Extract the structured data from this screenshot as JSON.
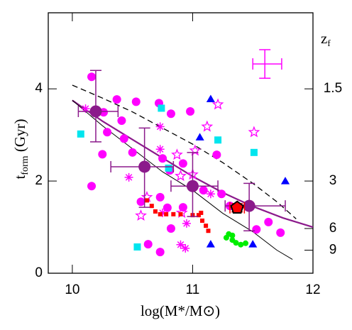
{
  "chart_data": {
    "type": "scatter",
    "xlabel": "log(M*/M⊙)",
    "ylabel": {
      "text": "t",
      "sub": "form",
      "rest": " (Gyr)"
    },
    "y2label": {
      "text": "z",
      "sub": "f"
    },
    "xlim": [
      9.8,
      12
    ],
    "ylim": [
      0,
      5.65
    ],
    "xticks": [
      10,
      11,
      12
    ],
    "yticks": [
      0,
      2,
      4
    ],
    "y2ticks": [
      1.5,
      3,
      6,
      9
    ],
    "y2tick_tform": [
      4.0,
      2.0,
      0.97,
      0.5
    ],
    "lines": [
      {
        "style": "dashed",
        "color": "#000000",
        "width": 1.3,
        "x": [
          10.0,
          10.25,
          10.5,
          10.75,
          11.0,
          11.25,
          11.5,
          11.7,
          11.86
        ],
        "values": [
          4.08,
          3.8,
          3.5,
          3.15,
          2.8,
          2.4,
          1.95,
          1.55,
          1.18
        ]
      },
      {
        "style": "solid",
        "color": "#8b1a8b",
        "width": 2.2,
        "x": [
          10.0,
          10.25,
          10.5,
          10.75,
          11.0,
          11.25,
          11.5,
          11.75,
          12.0
        ],
        "values": [
          3.75,
          3.3,
          2.9,
          2.5,
          2.1,
          1.75,
          1.45,
          1.2,
          1.0
        ]
      },
      {
        "style": "solid",
        "color": "#000000",
        "width": 1,
        "x": [
          10.0,
          10.25,
          10.5,
          10.75,
          11.0,
          11.25,
          11.5,
          11.7,
          11.83
        ],
        "values": [
          3.75,
          3.2,
          2.7,
          2.2,
          1.8,
          1.3,
          0.9,
          0.5,
          0.3
        ]
      }
    ],
    "series": [
      {
        "marker": "circle",
        "color": "#ff00ff",
        "x": [
          10.16,
          10.16,
          10.25,
          10.29,
          10.26,
          10.37,
          10.41,
          10.5,
          10.43,
          10.53,
          10.72,
          10.82,
          10.98,
          10.75,
          10.73,
          10.79,
          10.82,
          10.63,
          10.73,
          10.92,
          11.09,
          11.24,
          11.2,
          11.31,
          11.53,
          11.63,
          11.73,
          10.57,
          10.81,
          10.92
        ],
        "values": [
          4.26,
          1.89,
          2.58,
          3.06,
          3.49,
          3.77,
          3.31,
          2.62,
          2.92,
          3.72,
          3.69,
          3.46,
          3.51,
          2.49,
          1.65,
          1.42,
          0.97,
          0.63,
          0.46,
          1.43,
          1.8,
          1.72,
          2.57,
          1.46,
          0.95,
          1.11,
          0.88,
          1.55,
          2.23,
          2.38
        ]
      },
      {
        "marker": "star",
        "color": "#ff00ff",
        "x": [
          11.21,
          11.12,
          11.51,
          11.02,
          10.87,
          11.0,
          10.9,
          10.62,
          10.57,
          10.91
        ],
        "values": [
          3.66,
          3.18,
          3.06,
          2.66,
          2.57,
          2.14,
          2.11,
          1.65,
          1.25,
          1.31
        ]
      },
      {
        "marker": "asterisk",
        "color": "#ff00ff",
        "x": [
          10.11,
          10.73,
          10.47,
          11.15,
          10.75,
          10.95,
          10.9,
          10.94,
          10.73
        ],
        "values": [
          3.57,
          3.18,
          2.08,
          1.72,
          1.31,
          1.08,
          0.62,
          0.54,
          2.69
        ]
      },
      {
        "marker": "square",
        "color": "#00e5ee",
        "x": [
          10.07,
          10.74,
          10.8,
          11.21,
          11.51,
          10.54
        ],
        "values": [
          3.02,
          3.58,
          2.28,
          2.89,
          2.62,
          0.57
        ]
      },
      {
        "marker": "triangle",
        "color": "#0000ff",
        "x": [
          11.15,
          11.06,
          11.77,
          11.15,
          11.5
        ],
        "values": [
          3.78,
          2.95,
          2.0,
          0.63,
          0.63
        ]
      },
      {
        "marker": "smallsquare",
        "color": "#ff0000",
        "x": [
          10.62,
          10.66,
          10.69,
          10.73,
          10.78,
          10.84,
          10.9,
          11.0,
          11.05,
          11.08,
          11.11,
          11.13,
          11.07
        ],
        "values": [
          1.58,
          1.46,
          1.34,
          1.28,
          1.28,
          1.28,
          1.28,
          1.26,
          1.26,
          1.14,
          1.03,
          0.92,
          1.31
        ]
      },
      {
        "marker": "smallcircle",
        "color": "#00ee00",
        "x": [
          11.3,
          11.33,
          11.36,
          11.4,
          11.44,
          11.33,
          11.28
        ],
        "values": [
          0.85,
          0.72,
          0.66,
          0.62,
          0.65,
          0.82,
          0.77
        ]
      }
    ],
    "errorpoints": [
      {
        "marker": "bigcircle",
        "color": "#8b1a8b",
        "x": [
          10.195,
          10.6,
          11.0,
          11.47
        ],
        "values": [
          3.51,
          2.31,
          1.89,
          1.46
        ],
        "xlow": [
          10.05,
          10.32,
          10.82,
          11.27
        ],
        "xhigh": [
          10.38,
          10.84,
          11.21,
          11.77
        ],
        "ylow": [
          2.85,
          1.43,
          1.23,
          0.92
        ],
        "yhigh": [
          4.4,
          3.15,
          2.62,
          1.95
        ]
      },
      {
        "marker": "pentagon",
        "color": "#ff0000",
        "x": [
          11.37
        ],
        "values": [
          1.42
        ],
        "xlow": [
          11.31
        ],
        "xhigh": [
          11.43
        ],
        "ylow": [
          1.33
        ],
        "yhigh": [
          1.51
        ]
      },
      {
        "marker": "none",
        "color": "#ff00ff",
        "x": [
          11.6
        ],
        "values": [
          4.54
        ],
        "xlow": [
          11.5
        ],
        "xhigh": [
          11.74
        ],
        "ylow": [
          4.23
        ],
        "yhigh": [
          4.85
        ]
      }
    ]
  }
}
